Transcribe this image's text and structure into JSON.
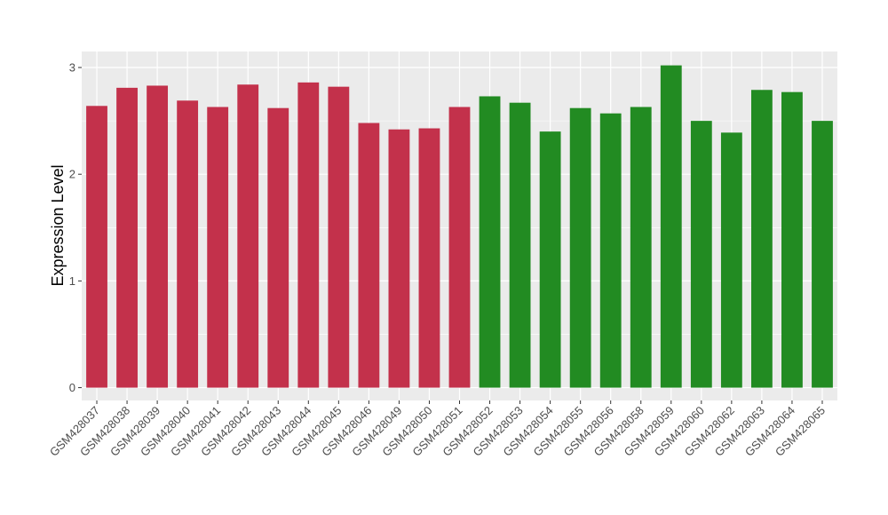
{
  "chart_data": {
    "type": "bar",
    "title": "",
    "xlabel": "",
    "ylabel": "Expression Level",
    "ylim": [
      -0.12,
      3.15
    ],
    "yticks": [
      0,
      1,
      2,
      3
    ],
    "grid": true,
    "legend": "none",
    "panel_background": "#ebebeb",
    "gridline_color": "#ffffff",
    "categories": [
      "GSM428037",
      "GSM428038",
      "GSM428039",
      "GSM428040",
      "GSM428041",
      "GSM428042",
      "GSM428043",
      "GSM428044",
      "GSM428045",
      "GSM428046",
      "GSM428049",
      "GSM428050",
      "GSM428051",
      "GSM428052",
      "GSM428053",
      "GSM428054",
      "GSM428055",
      "GSM428056",
      "GSM428058",
      "GSM428059",
      "GSM428060",
      "GSM428062",
      "GSM428063",
      "GSM428064",
      "GSM428065"
    ],
    "values": [
      2.64,
      2.81,
      2.83,
      2.69,
      2.63,
      2.84,
      2.62,
      2.86,
      2.82,
      2.48,
      2.42,
      2.43,
      2.63,
      2.73,
      2.67,
      2.4,
      2.62,
      2.57,
      2.63,
      3.02,
      2.5,
      2.39,
      2.79,
      2.77,
      2.5
    ],
    "colors": [
      "#c3314b",
      "#c3314b",
      "#c3314b",
      "#c3314b",
      "#c3314b",
      "#c3314b",
      "#c3314b",
      "#c3314b",
      "#c3314b",
      "#c3314b",
      "#c3314b",
      "#c3314b",
      "#c3314b",
      "#228b22",
      "#228b22",
      "#228b22",
      "#228b22",
      "#228b22",
      "#228b22",
      "#228b22",
      "#228b22",
      "#228b22",
      "#228b22",
      "#228b22",
      "#228b22"
    ]
  }
}
